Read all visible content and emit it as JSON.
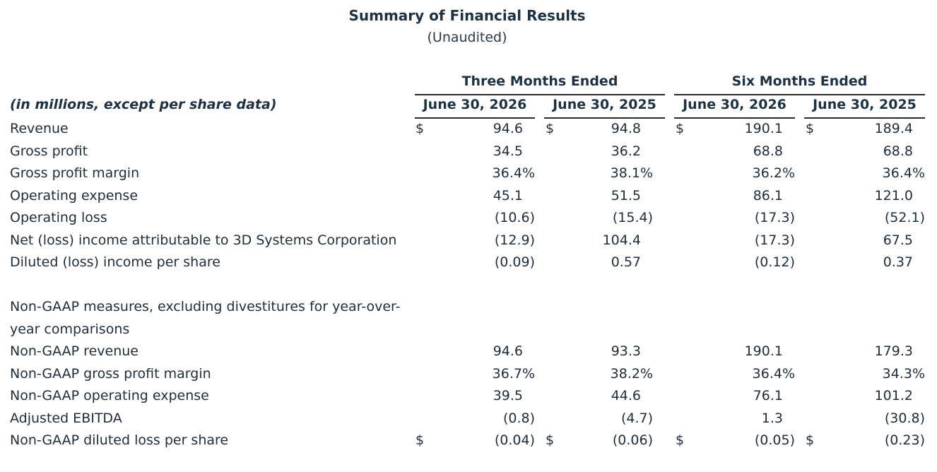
{
  "title": "Summary of Financial Results",
  "subtitle": "(Unaudited)",
  "groups": [
    "Three Months Ended",
    "Six Months Ended"
  ],
  "units_label": "(in millions, except per share data)",
  "columns": [
    "June 30, 2026",
    "June 30, 2025",
    "June 30, 2026",
    "June 30, 2025"
  ],
  "rows": [
    {
      "label": "Revenue",
      "dollar": true,
      "values": [
        "94.6",
        "94.8",
        "190.1",
        "189.4"
      ]
    },
    {
      "label": "Gross profit",
      "dollar": false,
      "values": [
        "34.5",
        "36.2",
        "68.8",
        "68.8"
      ]
    },
    {
      "label": "Gross profit margin",
      "dollar": false,
      "values": [
        "36.4%",
        "38.1%",
        "36.2%",
        "36.4%"
      ]
    },
    {
      "label": "Operating expense",
      "dollar": false,
      "values": [
        "45.1",
        "51.5",
        "86.1",
        "121.0"
      ]
    },
    {
      "label": "Operating loss",
      "dollar": false,
      "values": [
        "(10.6)",
        "(15.4)",
        "(17.3)",
        "(52.1)"
      ]
    },
    {
      "label": "Net (loss) income attributable to 3D Systems Corporation",
      "dollar": false,
      "values": [
        "(12.9)",
        "104.4",
        "(17.3)",
        "67.5"
      ]
    },
    {
      "label": "Diluted (loss) income per share",
      "dollar": false,
      "values": [
        "(0.09)",
        "0.57",
        "(0.12)",
        "0.37"
      ]
    }
  ],
  "non_gaap_heading": "Non-GAAP measures, excluding divestitures for year-over-year comparisons",
  "non_gaap_rows": [
    {
      "label": "Non-GAAP revenue",
      "dollar": false,
      "values": [
        "94.6",
        "93.3",
        "190.1",
        "179.3"
      ]
    },
    {
      "label": "Non-GAAP gross profit margin",
      "dollar": false,
      "values": [
        "36.7%",
        "38.2%",
        "36.4%",
        "34.3%"
      ]
    },
    {
      "label": "Non-GAAP operating expense",
      "dollar": false,
      "values": [
        "39.5",
        "44.6",
        "76.1",
        "101.2"
      ]
    },
    {
      "label": "Adjusted EBITDA",
      "dollar": false,
      "values": [
        "(0.8)",
        "(4.7)",
        "1.3",
        "(30.8)"
      ]
    },
    {
      "label": "Non-GAAP diluted loss per share",
      "dollar": true,
      "values": [
        "(0.04)",
        "(0.06)",
        "(0.05)",
        "(0.23)"
      ]
    }
  ],
  "dollar_sign": "$"
}
